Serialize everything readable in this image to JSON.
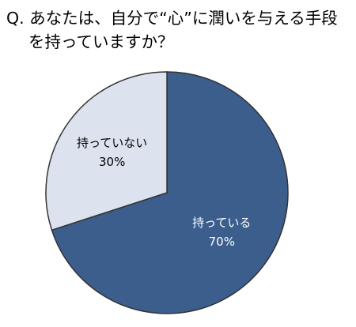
{
  "chart_data": {
    "type": "pie",
    "title": "Q. あなたは、自分で“心”に潤いを与える手段を持っていますか？",
    "categories": [
      "持っている",
      "持っていない"
    ],
    "values": [
      70,
      30
    ],
    "value_labels": [
      "70%",
      "30%"
    ],
    "colors": [
      "#3b5e8c",
      "#dce3ef"
    ]
  }
}
